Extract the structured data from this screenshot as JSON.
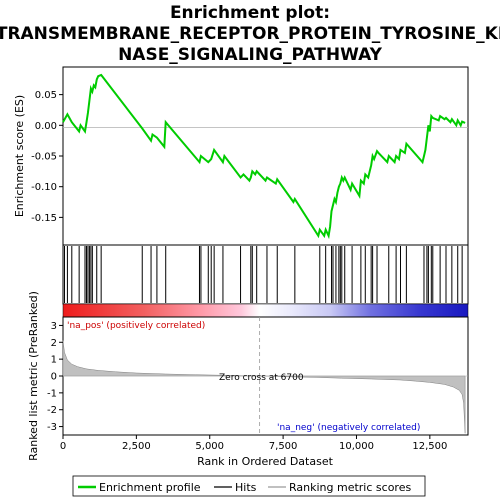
{
  "chart_data": {
    "type": "line",
    "title_lines": [
      "Enrichment plot:",
      "TRANSMEMBRANE_RECEPTOR_PROTEIN_TYROSINE_KI",
      "NASE_SIGNALING_PATHWAY"
    ],
    "xlabel": "Rank in Ordered Dataset",
    "top_ylabel": "Enrichment score (ES)",
    "bottom_ylabel": "Ranked list metric (PreRanked)",
    "xlim": [
      0,
      13800
    ],
    "x_ticks": [
      0,
      2500,
      5000,
      7500,
      10000,
      12500
    ],
    "x_tick_labels": [
      "0",
      "2,500",
      "5,000",
      "7,500",
      "10,000",
      "12,500"
    ],
    "es_ylim": [
      -0.195,
      0.095
    ],
    "es_ticks": [
      0.05,
      0.0,
      -0.05,
      -0.1,
      -0.15
    ],
    "es_tick_labels": [
      "0.05",
      "0.00",
      "-0.05",
      "-0.10",
      "-0.15"
    ],
    "metric_ylim": [
      -3.5,
      3.5
    ],
    "metric_ticks": [
      3,
      2,
      1,
      0,
      -1,
      -2,
      -3
    ],
    "metric_tick_labels": [
      "3",
      "2",
      "1",
      "0",
      "-1",
      "-2",
      "-3"
    ],
    "series": [
      {
        "name": "Enrichment profile",
        "color": "#00cc00",
        "x": [
          0,
          150,
          300,
          550,
          600,
          750,
          800,
          850,
          900,
          950,
          1000,
          1050,
          1100,
          1150,
          1200,
          1300,
          2700,
          3000,
          3050,
          3200,
          3450,
          3500,
          4650,
          4700,
          4950,
          5050,
          5150,
          5450,
          5500,
          6050,
          6150,
          6350,
          6400,
          6450,
          6550,
          6600,
          6900,
          6950,
          7250,
          7300,
          7850,
          7900,
          8700,
          8750,
          8900,
          8950,
          9050,
          9100,
          9150,
          9200,
          9250,
          9300,
          9350,
          9400,
          9450,
          9500,
          9550,
          9600,
          9800,
          9850,
          10100,
          10150,
          10250,
          10300,
          10400,
          10500,
          10550,
          10600,
          10700,
          10750,
          11050,
          11100,
          11300,
          11350,
          11450,
          11500,
          11650,
          11700,
          12250,
          12300,
          12350,
          12400,
          12450,
          12500,
          12550,
          12600,
          12800,
          12850,
          13000,
          13050,
          13200,
          13250,
          13400,
          13450,
          13550,
          13600,
          13700
        ],
        "values": [
          0.005,
          0.018,
          0.005,
          -0.01,
          0.0,
          -0.01,
          0.005,
          0.02,
          0.04,
          0.06,
          0.055,
          0.065,
          0.062,
          0.075,
          0.08,
          0.082,
          -0.005,
          -0.025,
          -0.015,
          -0.02,
          -0.035,
          0.005,
          -0.06,
          -0.05,
          -0.06,
          -0.055,
          -0.04,
          -0.06,
          -0.05,
          -0.085,
          -0.08,
          -0.09,
          -0.085,
          -0.075,
          -0.08,
          -0.075,
          -0.09,
          -0.085,
          -0.095,
          -0.088,
          -0.125,
          -0.12,
          -0.18,
          -0.17,
          -0.18,
          -0.17,
          -0.18,
          -0.165,
          -0.14,
          -0.13,
          -0.12,
          -0.125,
          -0.11,
          -0.1,
          -0.095,
          -0.085,
          -0.09,
          -0.085,
          -0.105,
          -0.095,
          -0.115,
          -0.09,
          -0.095,
          -0.08,
          -0.085,
          -0.065,
          -0.05,
          -0.055,
          -0.042,
          -0.045,
          -0.06,
          -0.05,
          -0.06,
          -0.05,
          -0.055,
          -0.04,
          -0.045,
          -0.03,
          -0.06,
          -0.05,
          -0.04,
          -0.02,
          0.0,
          -0.01,
          0.015,
          0.012,
          0.008,
          0.015,
          0.01,
          0.012,
          0.005,
          0.01,
          0.0,
          0.008,
          0.0,
          0.006,
          0.004
        ]
      },
      {
        "name": "Hits",
        "color": "#000000",
        "x": [
          50,
          150,
          300,
          550,
          750,
          800,
          850,
          900,
          950,
          1000,
          1150,
          1300,
          2700,
          3000,
          3200,
          3500,
          4650,
          4700,
          4950,
          5050,
          5150,
          5450,
          6050,
          6400,
          6450,
          6600,
          6950,
          7300,
          7900,
          8750,
          8950,
          9150,
          9200,
          9300,
          9400,
          9450,
          9500,
          9600,
          9850,
          10150,
          10300,
          10500,
          10550,
          10700,
          11100,
          11350,
          11500,
          11700,
          12300,
          12400,
          12450,
          12550,
          12600,
          12850,
          13050,
          13250,
          13450,
          13600
        ]
      },
      {
        "name": "Ranking metric scores",
        "color": "#c0c0c0",
        "x": [
          0,
          50,
          150,
          300,
          500,
          800,
          1200,
          1800,
          2500,
          3500,
          4500,
          5500,
          6700,
          7500,
          8500,
          9500,
          10500,
          11500,
          12000,
          12500,
          13000,
          13300,
          13500,
          13600,
          13650,
          13700
        ],
        "values": [
          2.1,
          1.4,
          0.95,
          0.7,
          0.55,
          0.42,
          0.33,
          0.25,
          0.18,
          0.12,
          0.08,
          0.04,
          0.0,
          -0.04,
          -0.08,
          -0.13,
          -0.18,
          -0.24,
          -0.3,
          -0.38,
          -0.5,
          -0.65,
          -0.85,
          -1.1,
          -1.6,
          -3.4
        ]
      }
    ],
    "zero_cross_label": "Zero cross at 6700",
    "zero_cross_x": 6700,
    "pos_label": "'na_pos' (positively correlated)",
    "neg_label": "'na_neg' (negatively correlated)",
    "colors": {
      "pos_strong": "#ee2020",
      "pos_light": "#ffb6c1",
      "neutral": "#ffffff",
      "neg_light": "#c8c8f8",
      "neg_strong": "#1e1ecc",
      "pos_text": "#cc0000",
      "neg_text": "#0000cc"
    },
    "legend": {
      "placement": "bottom",
      "items": [
        "Enrichment profile",
        "Hits",
        "Ranking metric scores"
      ]
    }
  }
}
